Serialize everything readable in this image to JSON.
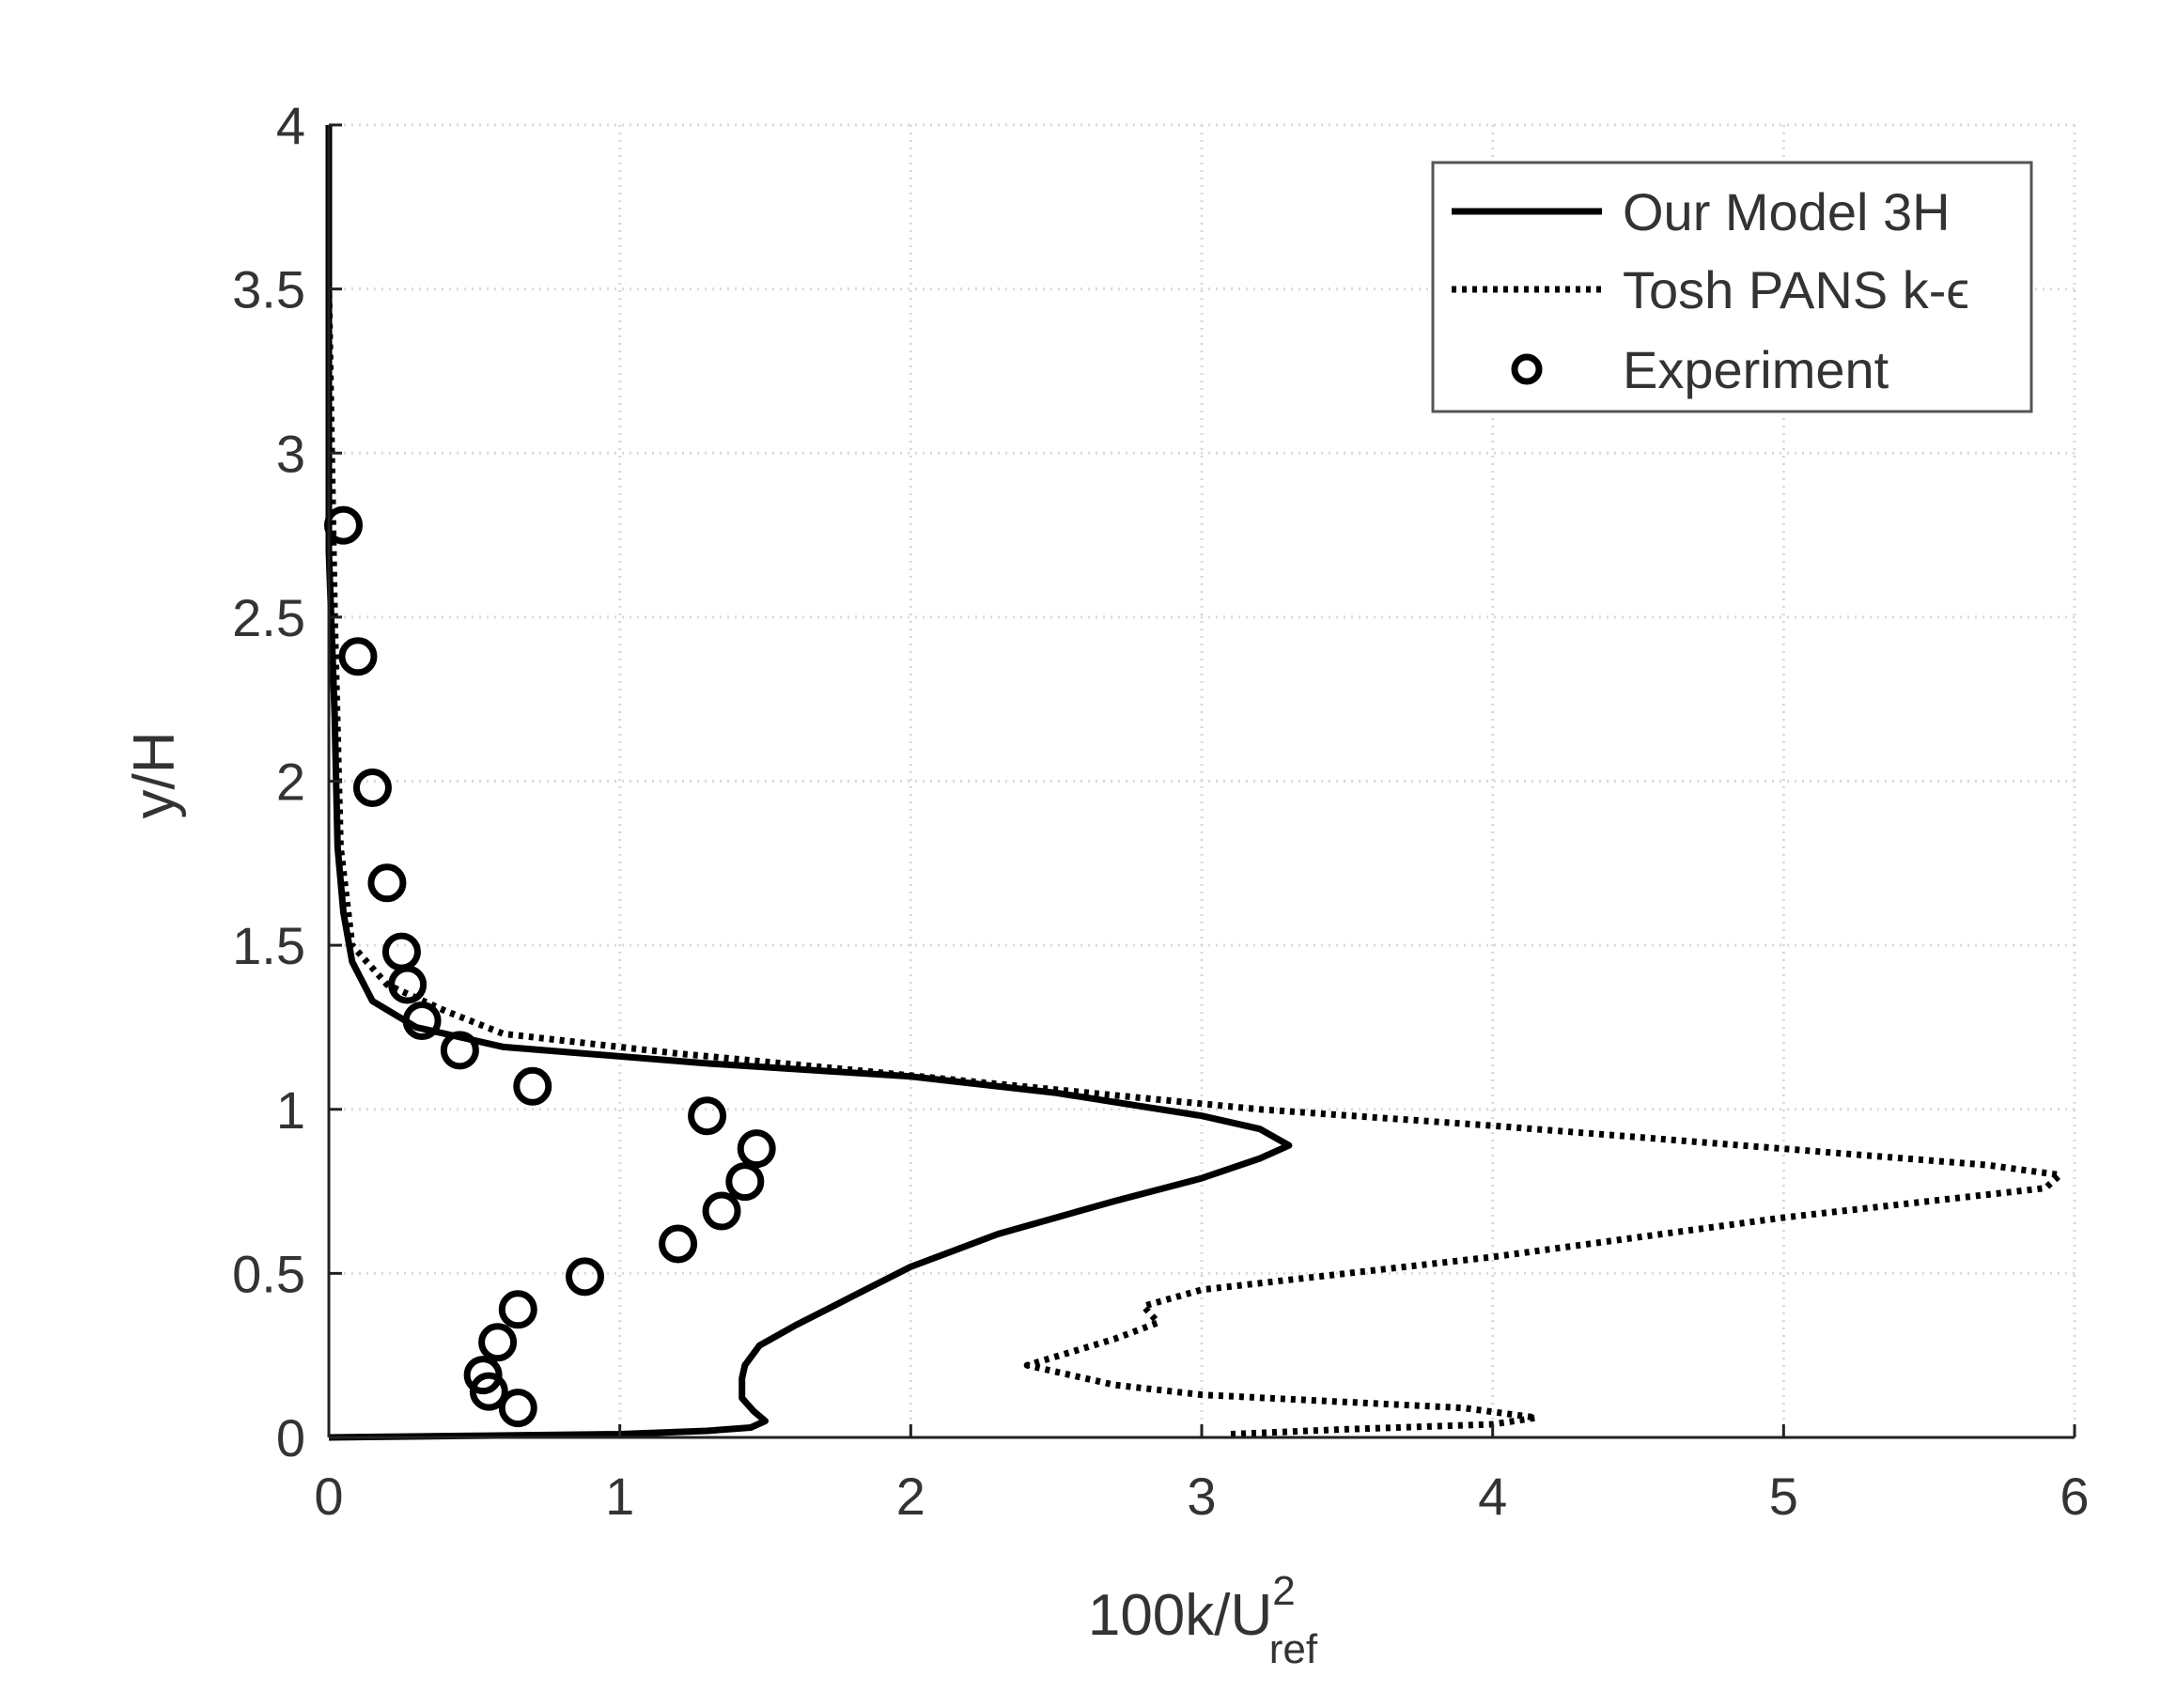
{
  "chart_data": {
    "type": "line",
    "xlabel": "100k/U",
    "xlabel_superscript": "2",
    "xlabel_subscript": "ref",
    "ylabel": "y/H",
    "xlim": [
      0,
      6
    ],
    "ylim": [
      0,
      4
    ],
    "xticks": [
      "0",
      "1",
      "2",
      "3",
      "4",
      "5",
      "6"
    ],
    "yticks": [
      "0",
      "0.5",
      "1",
      "1.5",
      "2",
      "2.5",
      "3",
      "3.5",
      "4"
    ],
    "grid": true,
    "legend_position": "top-right",
    "series": [
      {
        "name": "Our Model 3H",
        "style": "solid",
        "color": "#000000",
        "points": [
          [
            0.0,
            0.0
          ],
          [
            0.5,
            0.005
          ],
          [
            1.0,
            0.01
          ],
          [
            1.3,
            0.02
          ],
          [
            1.45,
            0.03
          ],
          [
            1.5,
            0.05
          ],
          [
            1.46,
            0.08
          ],
          [
            1.42,
            0.12
          ],
          [
            1.42,
            0.18
          ],
          [
            1.43,
            0.22
          ],
          [
            1.48,
            0.28
          ],
          [
            1.6,
            0.34
          ],
          [
            1.8,
            0.43
          ],
          [
            2.0,
            0.52
          ],
          [
            2.3,
            0.62
          ],
          [
            2.7,
            0.72
          ],
          [
            3.0,
            0.79
          ],
          [
            3.2,
            0.85
          ],
          [
            3.3,
            0.89
          ],
          [
            3.2,
            0.94
          ],
          [
            3.0,
            0.98
          ],
          [
            2.5,
            1.05
          ],
          [
            2.0,
            1.1
          ],
          [
            1.3,
            1.14
          ],
          [
            0.6,
            1.19
          ],
          [
            0.3,
            1.25
          ],
          [
            0.15,
            1.33
          ],
          [
            0.08,
            1.45
          ],
          [
            0.05,
            1.6
          ],
          [
            0.03,
            1.8
          ],
          [
            0.02,
            2.2
          ],
          [
            0.0,
            2.7
          ],
          [
            0.0,
            4.0
          ]
        ]
      },
      {
        "name": "Tosh PANS k-ϵ",
        "style": "dotted",
        "color": "#000000",
        "points": [
          [
            3.1,
            0.01
          ],
          [
            3.5,
            0.025
          ],
          [
            4.0,
            0.04
          ],
          [
            4.15,
            0.06
          ],
          [
            3.9,
            0.09
          ],
          [
            3.0,
            0.13
          ],
          [
            2.7,
            0.16
          ],
          [
            2.4,
            0.22
          ],
          [
            2.55,
            0.26
          ],
          [
            2.7,
            0.3
          ],
          [
            2.85,
            0.35
          ],
          [
            2.8,
            0.4
          ],
          [
            3.0,
            0.45
          ],
          [
            4.0,
            0.55
          ],
          [
            5.0,
            0.67
          ],
          [
            5.9,
            0.76
          ],
          [
            5.95,
            0.8
          ],
          [
            5.7,
            0.83
          ],
          [
            5.0,
            0.88
          ],
          [
            4.0,
            0.95
          ],
          [
            3.2,
            1.0
          ],
          [
            2.5,
            1.06
          ],
          [
            1.8,
            1.12
          ],
          [
            1.2,
            1.17
          ],
          [
            0.6,
            1.23
          ],
          [
            0.4,
            1.3
          ],
          [
            0.2,
            1.38
          ],
          [
            0.08,
            1.5
          ],
          [
            0.04,
            1.8
          ],
          [
            0.02,
            2.5
          ],
          [
            0.0,
            3.5
          ],
          [
            0.0,
            4.0
          ]
        ]
      },
      {
        "name": "Experiment",
        "style": "marker",
        "marker": "circle",
        "color": "#000000",
        "points": [
          [
            0.05,
            2.78
          ],
          [
            0.1,
            2.38
          ],
          [
            0.15,
            1.98
          ],
          [
            0.2,
            1.69
          ],
          [
            0.25,
            1.48
          ],
          [
            0.27,
            1.38
          ],
          [
            0.32,
            1.27
          ],
          [
            0.45,
            1.18
          ],
          [
            0.7,
            1.07
          ],
          [
            1.3,
            0.98
          ],
          [
            1.47,
            0.88
          ],
          [
            1.43,
            0.78
          ],
          [
            1.35,
            0.69
          ],
          [
            1.2,
            0.59
          ],
          [
            0.88,
            0.49
          ],
          [
            0.65,
            0.39
          ],
          [
            0.58,
            0.29
          ],
          [
            0.53,
            0.19
          ],
          [
            0.55,
            0.14
          ],
          [
            0.65,
            0.09
          ]
        ]
      }
    ]
  }
}
